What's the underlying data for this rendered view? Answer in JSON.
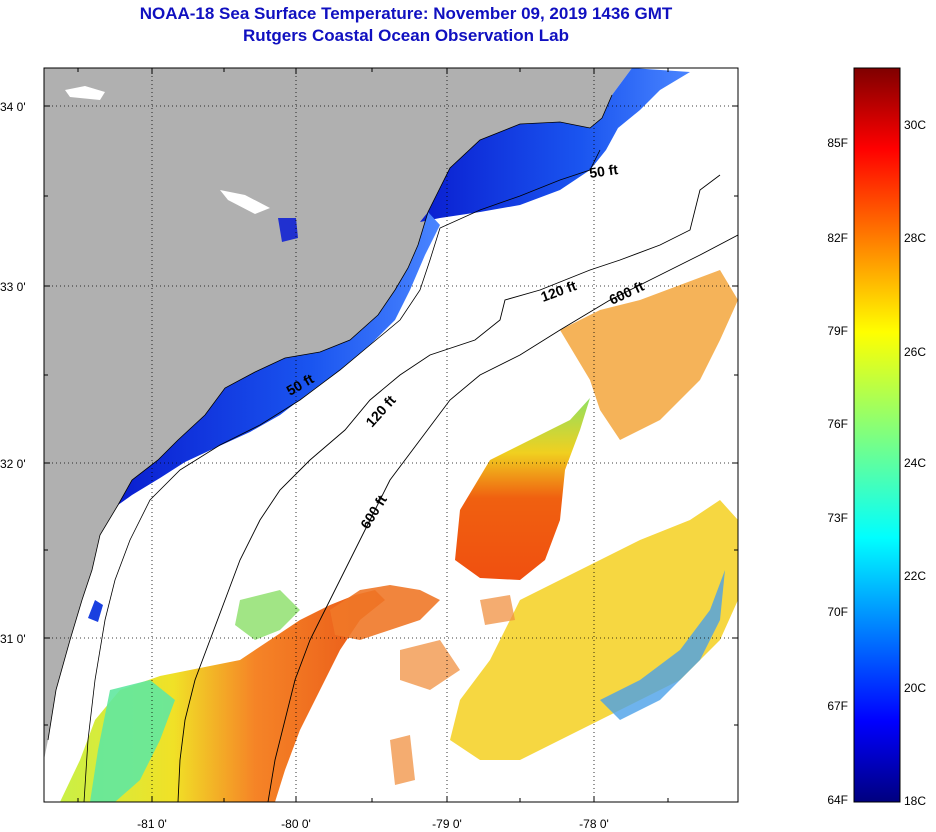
{
  "title": "NOAA-18 Sea Surface Temperature:  November 09, 2019 1436 GMT",
  "subtitle": "Rutgers Coastal Ocean Observation Lab",
  "map": {
    "lon_labels": [
      "-81 0'",
      "-80 0'",
      "-79 0'",
      "-78 0'"
    ],
    "lat_labels": [
      "34 0'",
      "33 0'",
      "32 0'",
      "31 0'"
    ],
    "contour_labels": [
      "50 ft",
      "120 ft",
      "600 ft",
      "50 ft",
      "120 ft",
      "600 ft"
    ],
    "colors": {
      "land": "#b0b0b0",
      "no_data": "#ffffff",
      "grid": "#000000"
    }
  },
  "colorbar": {
    "fahrenheit": [
      "85F",
      "82F",
      "79F",
      "76F",
      "73F",
      "70F",
      "67F",
      "64F"
    ],
    "celsius": [
      "30C",
      "28C",
      "26C",
      "24C",
      "22C",
      "20C",
      "18C"
    ]
  }
}
